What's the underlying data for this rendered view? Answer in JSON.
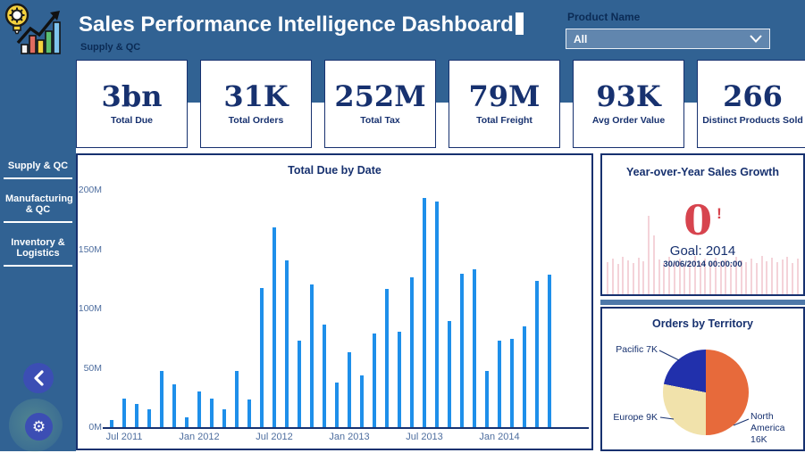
{
  "header": {
    "title": "Sales Performance Intelligence Dashboard",
    "subtitle": "Supply & QC",
    "filter_label": "Product Name",
    "filter_value": "All"
  },
  "sidebar": {
    "items": [
      {
        "label": "Supply & QC"
      },
      {
        "label": "Manufacturing & QC"
      },
      {
        "label": "Inventory & Logistics"
      }
    ]
  },
  "kpis": [
    {
      "value": "3bn",
      "label": "Total Due"
    },
    {
      "value": "31K",
      "label": "Total Orders"
    },
    {
      "value": "252M",
      "label": "Total Tax"
    },
    {
      "value": "79M",
      "label": "Total Freight"
    },
    {
      "value": "93K",
      "label": "Avg Order Value"
    },
    {
      "value": "266",
      "label": "Distinct Products Sold"
    }
  ],
  "chart_data": [
    {
      "type": "bar",
      "title": "Total Due by Date",
      "x": [
        "Jun 2011",
        "Jul 2011",
        "Aug 2011",
        "Sep 2011",
        "Oct 2011",
        "Nov 2011",
        "Dec 2011",
        "Jan 2012",
        "Feb 2012",
        "Mar 2012",
        "Apr 2012",
        "May 2012",
        "Jun 2012",
        "Jul 2012",
        "Aug 2012",
        "Sep 2012",
        "Oct 2012",
        "Nov 2012",
        "Dec 2012",
        "Jan 2013",
        "Feb 2013",
        "Mar 2013",
        "Apr 2013",
        "May 2013",
        "Jun 2013",
        "Jul 2013",
        "Aug 2013",
        "Sep 2013",
        "Oct 2013",
        "Nov 2013",
        "Dec 2013",
        "Jan 2014",
        "Feb 2014",
        "Mar 2014",
        "Apr 2014",
        "May 2014"
      ],
      "values": [
        7,
        25,
        20,
        16,
        48,
        37,
        9,
        31,
        25,
        16,
        48,
        24,
        118,
        169,
        141,
        74,
        121,
        87,
        38,
        64,
        44,
        80,
        117,
        81,
        127,
        194,
        191,
        90,
        130,
        134,
        48,
        74,
        75,
        86,
        124,
        129
      ],
      "unit": "M",
      "ylim": [
        0,
        200
      ],
      "y_ticks": [
        "0M",
        "50M",
        "100M",
        "150M",
        "200M"
      ],
      "x_tick_labels": [
        "Jul 2011",
        "Jan 2012",
        "Jul 2012",
        "Jan 2013",
        "Jul 2013",
        "Jan 2014"
      ],
      "grid": false,
      "bar_color": "#1E8FEA"
    },
    {
      "type": "kpi",
      "title": "Year-over-Year Sales Growth",
      "value": "0",
      "alert": "!",
      "goal_label": "Goal: 2014",
      "date_label": "30/06/2014 00:00:00"
    },
    {
      "type": "pie",
      "title": "Orders by Territory",
      "total": 32,
      "slices": [
        {
          "label": "North America",
          "value_label": "16K",
          "value": 16,
          "color": "#E76A3B"
        },
        {
          "label": "Europe",
          "value_label": "9K",
          "value": 9,
          "color": "#F1E2AB"
        },
        {
          "label": "Pacific",
          "value_label": "7K",
          "value": 7,
          "color": "#2130AC"
        }
      ],
      "legend_position": "labels-with-leader-lines"
    }
  ],
  "colors": {
    "header_blue": "#316293",
    "navy_text": "#17316F",
    "bar_blue": "#1E8FEA",
    "alert_red": "#D7444E",
    "dropdown_blue": "#6186AE",
    "divider_blue": "#4E78A9",
    "button_indigo": "#3C4EB4"
  }
}
